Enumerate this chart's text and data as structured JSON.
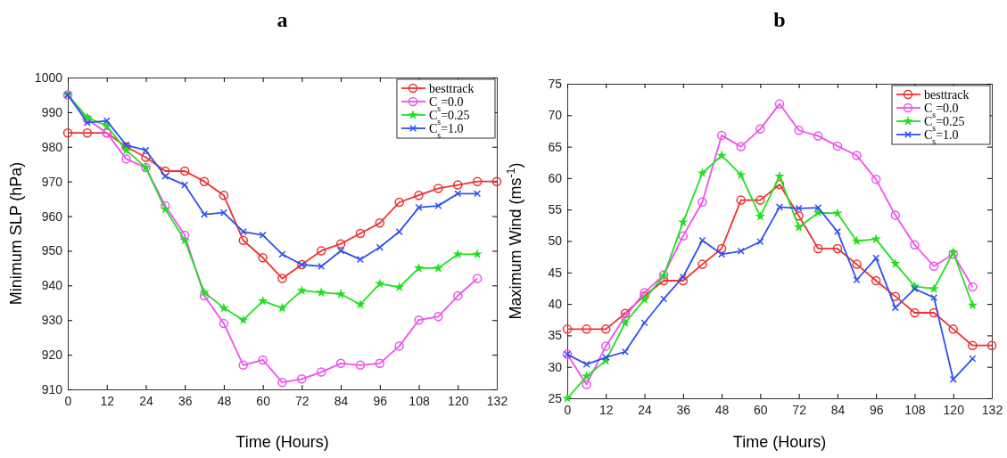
{
  "chart_data": [
    {
      "type": "line",
      "title": "a",
      "xlabel": "Time (Hours)",
      "ylabel": "Minimum SLP (hPa)",
      "xlim": [
        0,
        132
      ],
      "xticks": [
        0,
        12,
        24,
        36,
        48,
        60,
        72,
        84,
        96,
        108,
        120,
        132
      ],
      "ylim": [
        910,
        1000
      ],
      "yticks": [
        910,
        920,
        930,
        940,
        950,
        960,
        970,
        980,
        990,
        1000
      ],
      "grid": false,
      "legend": "top right",
      "line_style": "solid",
      "series": [
        {
          "name": "besttrack",
          "color": "#f03030",
          "marker": "circle",
          "x": [
            0,
            6,
            12,
            18,
            24,
            30,
            36,
            42,
            48,
            54,
            60,
            66,
            72,
            78,
            84,
            90,
            96,
            102,
            108,
            114,
            120,
            126,
            132
          ],
          "values": [
            984,
            984,
            984,
            980,
            977,
            973,
            973,
            970,
            966,
            953,
            948,
            942,
            946,
            950,
            952,
            955,
            958,
            964,
            966,
            968,
            969,
            970,
            970
          ]
        },
        {
          "name": "C$_{s}$=0.0",
          "color": "#f050f0",
          "marker": "circle",
          "x": [
            0,
            6,
            12,
            18,
            24,
            30,
            36,
            42,
            48,
            54,
            60,
            66,
            72,
            78,
            84,
            90,
            96,
            102,
            108,
            114,
            120,
            126
          ],
          "values": [
            995,
            988,
            984,
            976.5,
            974,
            963,
            954.5,
            937,
            929,
            917,
            918.5,
            912,
            913,
            915,
            917.5,
            917,
            917.5,
            922.5,
            930,
            931,
            937,
            942
          ]
        },
        {
          "name": "C$_{s}$=0.25",
          "color": "#20e020",
          "marker": "star",
          "x": [
            0,
            6,
            12,
            18,
            24,
            30,
            36,
            42,
            48,
            54,
            60,
            66,
            72,
            78,
            84,
            90,
            96,
            102,
            108,
            114,
            120,
            126
          ],
          "values": [
            995,
            988.5,
            986,
            979,
            974,
            962,
            953,
            938,
            933.5,
            930,
            935.5,
            933.5,
            938.5,
            938,
            937.5,
            934.5,
            940.5,
            939.5,
            945,
            945,
            949,
            949
          ]
        },
        {
          "name": "C$_{s}$=1.0",
          "color": "#3050f0",
          "marker": "cross",
          "x": [
            0,
            6,
            12,
            18,
            24,
            30,
            36,
            42,
            48,
            54,
            60,
            66,
            72,
            78,
            84,
            90,
            96,
            102,
            108,
            114,
            120,
            126
          ],
          "values": [
            995,
            987,
            987.5,
            980.5,
            979,
            971.5,
            969,
            960.5,
            961,
            955.5,
            954.5,
            949,
            946,
            945.5,
            950,
            947.5,
            951,
            955.5,
            962.5,
            963,
            966.5,
            966.5
          ]
        }
      ]
    },
    {
      "type": "line",
      "title": "b",
      "xlabel": "Time (Hours)",
      "ylabel": "Maximum Wind (ms$^{-1}$)",
      "xlim": [
        0,
        132
      ],
      "xticks": [
        0,
        12,
        24,
        36,
        48,
        60,
        72,
        84,
        96,
        108,
        120,
        132
      ],
      "ylim": [
        25,
        75
      ],
      "yticks": [
        25,
        30,
        35,
        40,
        45,
        50,
        55,
        60,
        65,
        70,
        75
      ],
      "grid": false,
      "legend": "top right",
      "line_style": "solid",
      "series": [
        {
          "name": "besttrack",
          "color": "#f03030",
          "marker": "circle",
          "x": [
            0,
            6,
            12,
            18,
            24,
            30,
            36,
            42,
            48,
            54,
            60,
            66,
            72,
            78,
            84,
            90,
            96,
            102,
            108,
            114,
            120,
            126,
            132
          ],
          "values": [
            36,
            36,
            36,
            38.5,
            41.3,
            43.7,
            43.7,
            46.3,
            48.8,
            56.5,
            56.5,
            59,
            54,
            48.8,
            48.8,
            46.3,
            43.7,
            41.2,
            38.6,
            38.6,
            36,
            33.4,
            33.4
          ]
        },
        {
          "name": "C$_{s}$=0.0",
          "color": "#f050f0",
          "marker": "circle",
          "x": [
            0,
            6,
            12,
            18,
            24,
            30,
            36,
            42,
            48,
            54,
            60,
            66,
            72,
            78,
            84,
            90,
            96,
            102,
            108,
            114,
            120,
            126
          ],
          "values": [
            32,
            27.2,
            33.3,
            38,
            41.8,
            44.6,
            50.8,
            56.2,
            66.8,
            65,
            67.8,
            71.8,
            67.6,
            66.7,
            65.1,
            63.6,
            59.8,
            54.1,
            49.4,
            46,
            47.9,
            42.7
          ]
        },
        {
          "name": "C$_{s}$=0.25",
          "color": "#20e020",
          "marker": "star",
          "x": [
            0,
            6,
            12,
            18,
            24,
            30,
            36,
            42,
            48,
            54,
            60,
            66,
            72,
            78,
            84,
            90,
            96,
            102,
            108,
            114,
            120,
            126
          ],
          "values": [
            25,
            28.5,
            31,
            37,
            40.7,
            44.5,
            53,
            60.8,
            63.6,
            60.5,
            53.9,
            60.3,
            52.2,
            54.5,
            54.4,
            50,
            50.3,
            46.4,
            42.8,
            42.4,
            48.2,
            39.8
          ]
        },
        {
          "name": "C$_{s}$=1.0",
          "color": "#3050f0",
          "marker": "cross",
          "x": [
            0,
            6,
            12,
            18,
            24,
            30,
            36,
            42,
            48,
            54,
            60,
            66,
            72,
            78,
            84,
            90,
            96,
            102,
            108,
            114,
            120,
            126
          ],
          "values": [
            32,
            30.4,
            31.5,
            32.4,
            37,
            40.8,
            44.3,
            50.1,
            47.9,
            48.4,
            49.9,
            55.4,
            55.2,
            55.3,
            51.5,
            43.8,
            47.3,
            39.4,
            42.4,
            41,
            28,
            31.3
          ]
        }
      ]
    }
  ]
}
